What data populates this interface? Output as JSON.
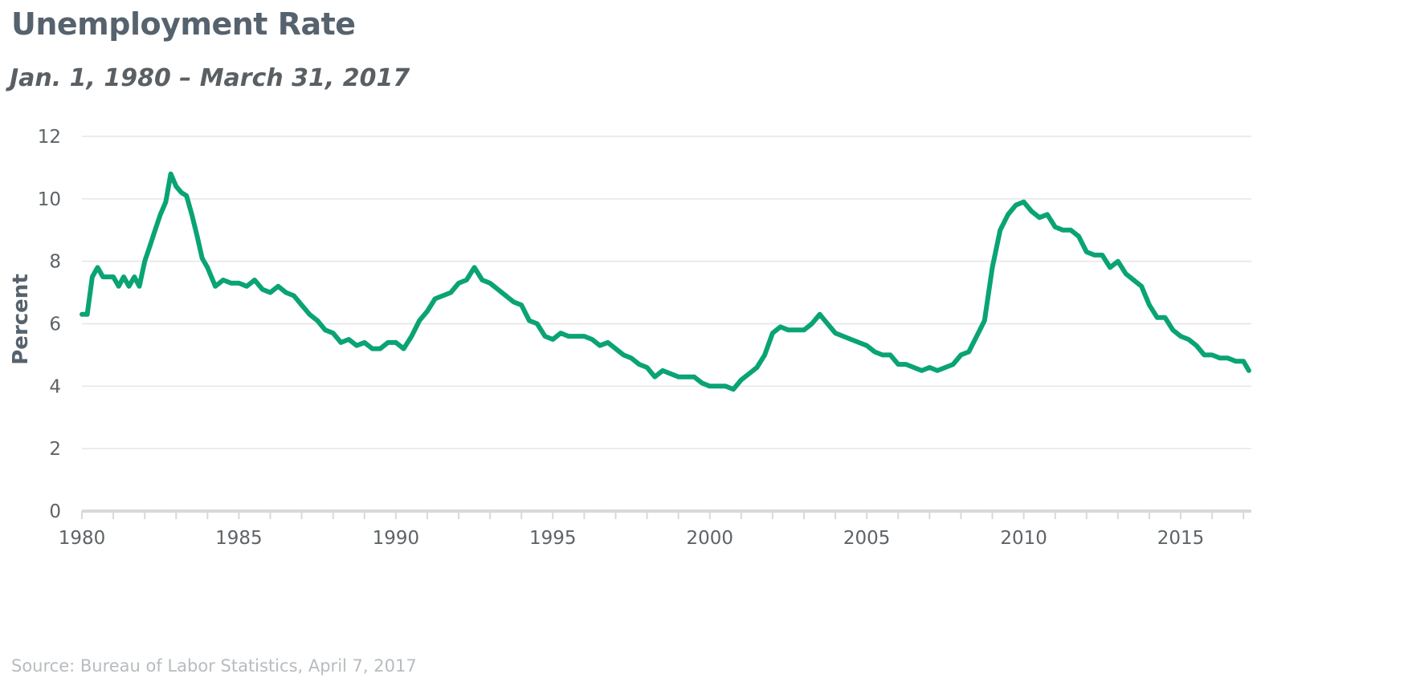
{
  "chart_data": {
    "type": "line",
    "title": "Unemployment Rate",
    "subtitle": "Jan. 1, 1980 – March 31, 2017",
    "ylabel": "Percent",
    "xlabel": "",
    "xlim": [
      1980,
      2017.25
    ],
    "ylim": [
      0,
      12
    ],
    "yticks": [
      0,
      2,
      4,
      6,
      8,
      10,
      12
    ],
    "xticks": [
      1980,
      1985,
      1990,
      1995,
      2000,
      2005,
      2010,
      2015
    ],
    "grid": true,
    "legend": "none",
    "series": [
      {
        "color": "#0aa374",
        "x": [
          1980.0,
          1980.17,
          1980.33,
          1980.5,
          1980.67,
          1980.83,
          1981.0,
          1981.17,
          1981.33,
          1981.5,
          1981.67,
          1981.83,
          1982.0,
          1982.17,
          1982.33,
          1982.5,
          1982.67,
          1982.83,
          1983.0,
          1983.17,
          1983.33,
          1983.5,
          1983.67,
          1983.83,
          1984.0,
          1984.25,
          1984.5,
          1984.75,
          1985.0,
          1985.25,
          1985.5,
          1985.75,
          1986.0,
          1986.25,
          1986.5,
          1986.75,
          1987.0,
          1987.25,
          1987.5,
          1987.75,
          1988.0,
          1988.25,
          1988.5,
          1988.75,
          1989.0,
          1989.25,
          1989.5,
          1989.75,
          1990.0,
          1990.25,
          1990.5,
          1990.75,
          1991.0,
          1991.25,
          1991.5,
          1991.75,
          1992.0,
          1992.25,
          1992.5,
          1992.75,
          1993.0,
          1993.25,
          1993.5,
          1993.75,
          1994.0,
          1994.25,
          1994.5,
          1994.75,
          1995.0,
          1995.25,
          1995.5,
          1995.75,
          1996.0,
          1996.25,
          1996.5,
          1996.75,
          1997.0,
          1997.25,
          1997.5,
          1997.75,
          1998.0,
          1998.25,
          1998.5,
          1998.75,
          1999.0,
          1999.25,
          1999.5,
          1999.75,
          2000.0,
          2000.25,
          2000.5,
          2000.75,
          2001.0,
          2001.25,
          2001.5,
          2001.75,
          2002.0,
          2002.25,
          2002.5,
          2002.75,
          2003.0,
          2003.25,
          2003.5,
          2003.75,
          2004.0,
          2004.25,
          2004.5,
          2004.75,
          2005.0,
          2005.25,
          2005.5,
          2005.75,
          2006.0,
          2006.25,
          2006.5,
          2006.75,
          2007.0,
          2007.25,
          2007.5,
          2007.75,
          2008.0,
          2008.25,
          2008.5,
          2008.75,
          2009.0,
          2009.25,
          2009.5,
          2009.75,
          2010.0,
          2010.25,
          2010.5,
          2010.75,
          2011.0,
          2011.25,
          2011.5,
          2011.75,
          2012.0,
          2012.25,
          2012.5,
          2012.75,
          2013.0,
          2013.25,
          2013.5,
          2013.75,
          2014.0,
          2014.25,
          2014.5,
          2014.75,
          2015.0,
          2015.25,
          2015.5,
          2015.75,
          2016.0,
          2016.25,
          2016.5,
          2016.75,
          2017.0,
          2017.17
        ],
        "y": [
          6.3,
          6.3,
          7.5,
          7.8,
          7.5,
          7.5,
          7.5,
          7.2,
          7.5,
          7.2,
          7.5,
          7.2,
          8.0,
          8.5,
          9.0,
          9.5,
          9.9,
          10.8,
          10.4,
          10.2,
          10.1,
          9.5,
          8.8,
          8.1,
          7.8,
          7.2,
          7.4,
          7.3,
          7.3,
          7.2,
          7.4,
          7.1,
          7.0,
          7.2,
          7.0,
          6.9,
          6.6,
          6.3,
          6.1,
          5.8,
          5.7,
          5.4,
          5.5,
          5.3,
          5.4,
          5.2,
          5.2,
          5.4,
          5.4,
          5.2,
          5.6,
          6.1,
          6.4,
          6.8,
          6.9,
          7.0,
          7.3,
          7.4,
          7.8,
          7.4,
          7.3,
          7.1,
          6.9,
          6.7,
          6.6,
          6.1,
          6.0,
          5.6,
          5.5,
          5.7,
          5.6,
          5.6,
          5.6,
          5.5,
          5.3,
          5.4,
          5.2,
          5.0,
          4.9,
          4.7,
          4.6,
          4.3,
          4.5,
          4.4,
          4.3,
          4.3,
          4.3,
          4.1,
          4.0,
          4.0,
          4.0,
          3.9,
          4.2,
          4.4,
          4.6,
          5.0,
          5.7,
          5.9,
          5.8,
          5.8,
          5.8,
          6.0,
          6.3,
          6.0,
          5.7,
          5.6,
          5.5,
          5.4,
          5.3,
          5.1,
          5.0,
          5.0,
          4.7,
          4.7,
          4.6,
          4.5,
          4.6,
          4.5,
          4.6,
          4.7,
          5.0,
          5.1,
          5.6,
          6.1,
          7.8,
          9.0,
          9.5,
          9.8,
          9.9,
          9.6,
          9.4,
          9.5,
          9.1,
          9.0,
          9.0,
          8.8,
          8.3,
          8.2,
          8.2,
          7.8,
          8.0,
          7.6,
          7.4,
          7.2,
          6.6,
          6.2,
          6.2,
          5.8,
          5.6,
          5.5,
          5.3,
          5.0,
          5.0,
          4.9,
          4.9,
          4.8,
          4.8,
          4.5
        ]
      }
    ]
  },
  "source": "Source: Bureau of Labor Statistics, April 7, 2017"
}
